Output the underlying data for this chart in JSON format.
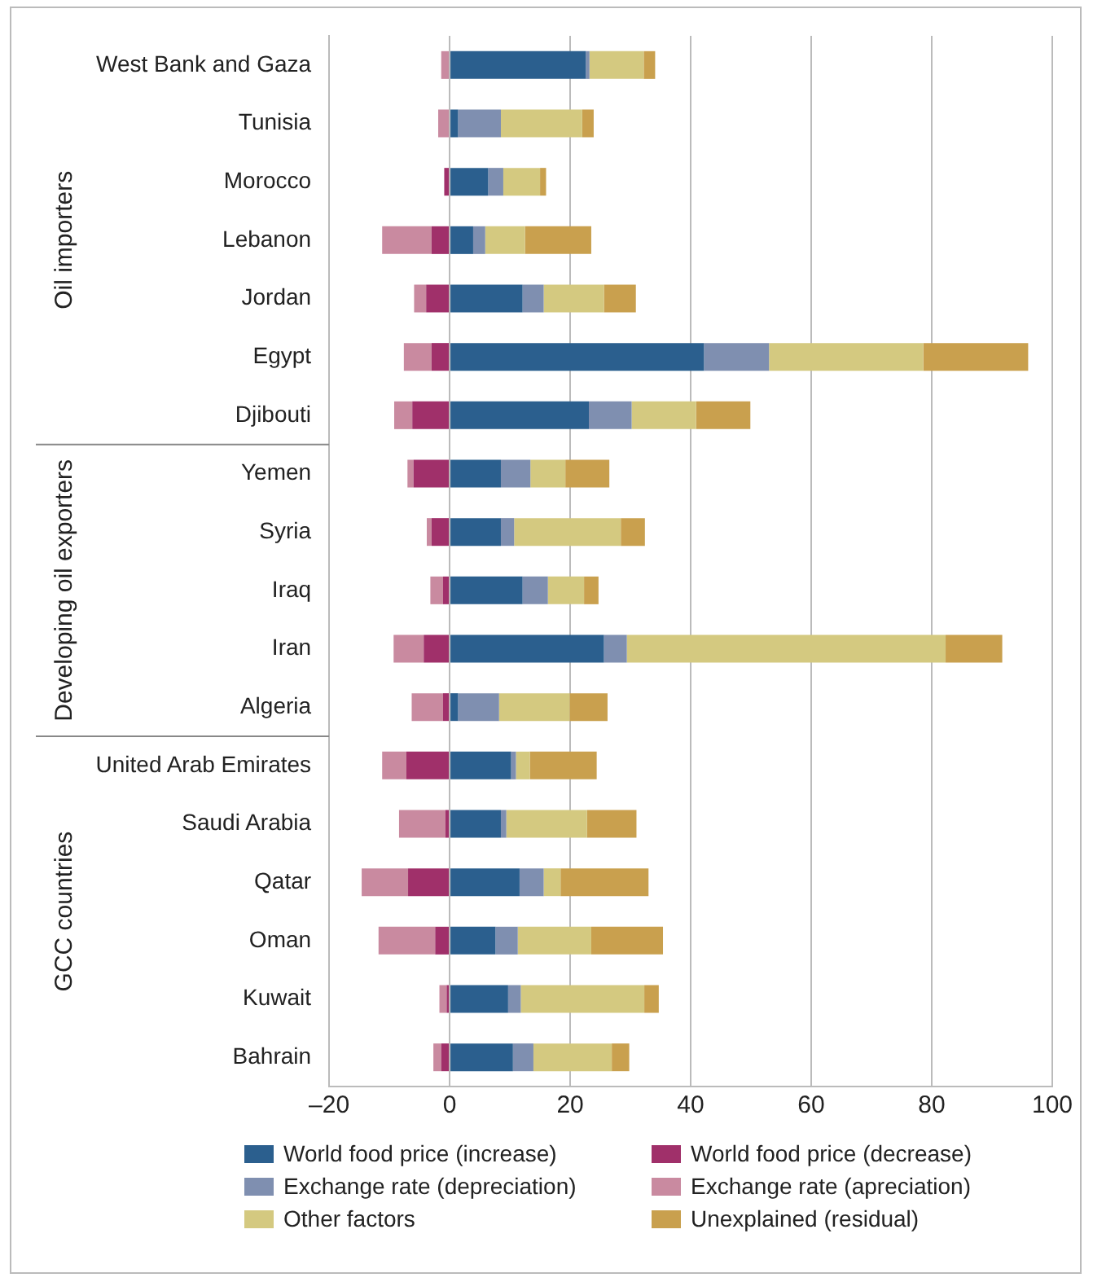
{
  "chart_data": {
    "type": "bar",
    "orientation": "horizontal",
    "stacked": true,
    "categories": [
      "West Bank and Gaza",
      "Tunisia",
      "Morocco",
      "Lebanon",
      "Jordan",
      "Egypt",
      "Djibouti",
      "Yemen",
      "Syria",
      "Iraq",
      "Iran",
      "Algeria",
      "United Arab Emirates",
      "Saudi Arabia",
      "Qatar",
      "Oman",
      "Kuwait",
      "Bahrain"
    ],
    "series": [
      {
        "name": "World food price (increase)",
        "color": "#2b5f8e",
        "values": [
          22.6,
          1.4,
          6.4,
          3.9,
          12.1,
          42.2,
          23.1,
          8.5,
          8.5,
          12.1,
          25.6,
          1.4,
          10.2,
          8.5,
          11.6,
          7.6,
          9.7,
          10.5
        ]
      },
      {
        "name": "World food price (decrease)",
        "color": "#a0306a",
        "values": [
          null,
          null,
          -0.9,
          -3.0,
          -3.9,
          -3.0,
          -6.2,
          -6.0,
          -3.0,
          -1.1,
          -4.3,
          -1.1,
          -7.2,
          -0.7,
          -6.9,
          -2.4,
          -0.5,
          -1.4
        ]
      },
      {
        "name": "Exchange rate (depreciation)",
        "color": "#7f8fb0",
        "values": [
          0.6,
          7.1,
          2.5,
          2.0,
          3.5,
          10.8,
          7.1,
          4.9,
          2.2,
          4.2,
          3.8,
          6.8,
          0.8,
          0.9,
          4.0,
          3.7,
          2.1,
          3.4
        ]
      },
      {
        "name": "Exchange rate (apreciation)",
        "color": "#c98aa0",
        "values": [
          -1.4,
          -1.9,
          null,
          -8.2,
          -2.0,
          -4.6,
          -3.0,
          -1.0,
          -0.8,
          -2.1,
          -5.0,
          -5.2,
          -4.0,
          -7.7,
          -7.7,
          -9.4,
          -1.2,
          -1.3
        ]
      },
      {
        "name": "Other factors",
        "color": "#d4c980",
        "values": [
          9.0,
          13.5,
          6.1,
          6.6,
          10.0,
          25.6,
          10.7,
          5.8,
          17.7,
          6.0,
          52.9,
          11.7,
          2.3,
          13.4,
          2.8,
          12.2,
          20.5,
          13.0
        ]
      },
      {
        "name": "Unexplained (residual)",
        "color": "#c9a04e",
        "values": [
          1.9,
          1.9,
          1.0,
          11.0,
          5.3,
          17.4,
          9.0,
          7.3,
          4.0,
          2.4,
          9.4,
          6.3,
          11.1,
          8.2,
          14.6,
          11.9,
          2.4,
          2.9
        ]
      }
    ],
    "xlim": [
      -20,
      100
    ],
    "xticks": [
      {
        "value": -20,
        "label": "–20"
      },
      0,
      20,
      40,
      60,
      80,
      100
    ],
    "grid": "x",
    "legend": "bottom",
    "annotations": [
      "Oil importers",
      "Developing oil exporters",
      "GCC countries"
    ]
  }
}
